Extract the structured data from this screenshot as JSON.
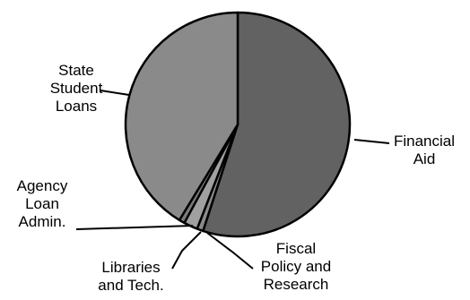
{
  "chart_data": {
    "type": "pie",
    "slices": [
      {
        "label": "Financial Aid",
        "lines": [
          "Financial",
          "Aid"
        ],
        "value": 55.0,
        "color": "#626262"
      },
      {
        "label": "Fiscal Policy and Research",
        "lines": [
          "Fiscal",
          "Policy and",
          "Research"
        ],
        "value": 0.9,
        "color": "#8a8a8a"
      },
      {
        "label": "Libraries and Tech.",
        "lines": [
          "Libraries",
          "and Tech."
        ],
        "value": 2.0,
        "color": "#a0a0a0"
      },
      {
        "label": "Agency Loan Admin.",
        "lines": [
          "Agency",
          "Loan",
          "Admin."
        ],
        "value": 0.8,
        "color": "#7a7a7a"
      },
      {
        "label": "State Student Loans",
        "lines": [
          "State",
          "Student",
          "Loans"
        ],
        "value": 41.3,
        "color": "#8a8a8a"
      }
    ],
    "start_angle_deg": 0,
    "direction": "clockwise",
    "legend": "none",
    "title": ""
  }
}
